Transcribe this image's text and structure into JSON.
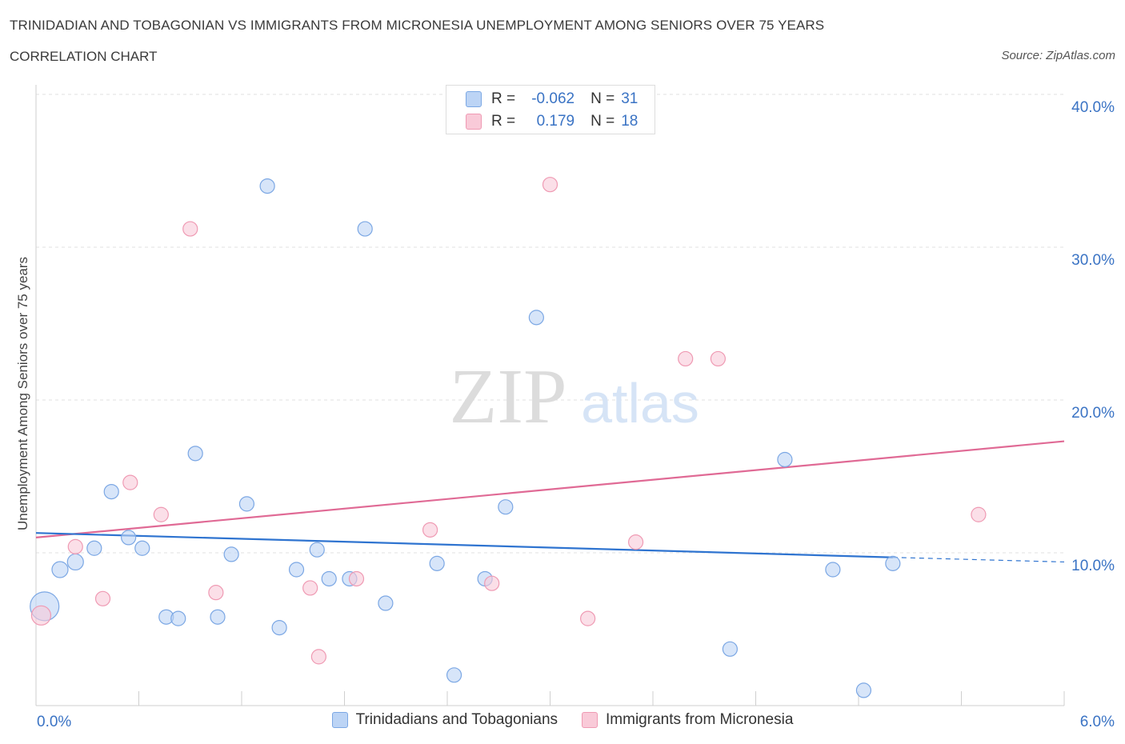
{
  "title": "TRINIDADIAN AND TOBAGONIAN VS IMMIGRANTS FROM MICRONESIA UNEMPLOYMENT AMONG SENIORS OVER 75 YEARS",
  "subtitle": "CORRELATION CHART",
  "source": "Source: ZipAtlas.com",
  "watermark": {
    "zip": "ZIP",
    "atlas": "atlas"
  },
  "stats": [
    {
      "r_label": "R =",
      "r_value": "-0.062",
      "n_label": "N =",
      "n_value": "31",
      "color": "#7ba7e4"
    },
    {
      "r_label": "R =",
      "r_value": "0.179",
      "n_label": "N =",
      "n_value": "18",
      "color": "#ef9ab3"
    }
  ],
  "colors": {
    "blue_fill": "#bcd4f5",
    "blue_stroke": "#7ba7e4",
    "blue_line": "#2f74d0",
    "pink_fill": "#f9cad8",
    "pink_stroke": "#ef9ab3",
    "pink_line": "#e06a95",
    "axis_text": "#3a73c4"
  },
  "chart_data": {
    "type": "scatter",
    "title": "TRINIDADIAN AND TOBAGONIAN VS IMMIGRANTS FROM MICRONESIA UNEMPLOYMENT AMONG SENIORS OVER 75 YEARS",
    "xlabel": "",
    "ylabel": "Unemployment Among Seniors over 75 years",
    "xlim": [
      0,
      6
    ],
    "ylim": [
      0,
      40
    ],
    "x_tick_labels": [
      "0.0%",
      "6.0%"
    ],
    "y_ticks": [
      10,
      20,
      30,
      40
    ],
    "y_tick_labels": [
      "10.0%",
      "20.0%",
      "30.0%",
      "40.0%"
    ],
    "grid": true,
    "legend": [
      "Trinidadians and Tobagonians",
      "Immigrants from Micronesia"
    ],
    "series": [
      {
        "name": "Trinidadians and Tobagonians",
        "points": [
          [
            0.05,
            6.5,
            18
          ],
          [
            0.14,
            8.9,
            10
          ],
          [
            0.23,
            9.4,
            10
          ],
          [
            0.34,
            10.3,
            9
          ],
          [
            0.44,
            14.0,
            9
          ],
          [
            0.54,
            11.0,
            9
          ],
          [
            0.62,
            10.3,
            9
          ],
          [
            0.76,
            5.8,
            9
          ],
          [
            0.83,
            5.7,
            9
          ],
          [
            0.93,
            16.5,
            9
          ],
          [
            1.06,
            5.8,
            9
          ],
          [
            1.14,
            9.9,
            9
          ],
          [
            1.23,
            13.2,
            9
          ],
          [
            1.35,
            34.0,
            9
          ],
          [
            1.42,
            5.1,
            9
          ],
          [
            1.52,
            8.9,
            9
          ],
          [
            1.64,
            10.2,
            9
          ],
          [
            1.71,
            8.3,
            9
          ],
          [
            1.83,
            8.3,
            9
          ],
          [
            1.92,
            31.2,
            9
          ],
          [
            2.04,
            6.7,
            9
          ],
          [
            2.34,
            9.3,
            9
          ],
          [
            2.44,
            2.0,
            9
          ],
          [
            2.62,
            8.3,
            9
          ],
          [
            2.74,
            13.0,
            9
          ],
          [
            2.92,
            25.4,
            9
          ],
          [
            4.05,
            3.7,
            9
          ],
          [
            4.37,
            16.1,
            9
          ],
          [
            4.65,
            8.9,
            9
          ],
          [
            4.83,
            1.0,
            9
          ],
          [
            5.0,
            9.3,
            9
          ]
        ],
        "trend": {
          "x": [
            0.0,
            5.0
          ],
          "y": [
            11.3,
            9.7
          ]
        },
        "trend_dashed": {
          "x": [
            5.0,
            6.0
          ],
          "y": [
            9.7,
            9.4
          ]
        }
      },
      {
        "name": "Immigrants from Micronesia",
        "points": [
          [
            0.03,
            5.9,
            12
          ],
          [
            0.23,
            10.4,
            9
          ],
          [
            0.39,
            7.0,
            9
          ],
          [
            0.55,
            14.6,
            9
          ],
          [
            0.73,
            12.5,
            9
          ],
          [
            0.9,
            31.2,
            9
          ],
          [
            1.05,
            7.4,
            9
          ],
          [
            1.6,
            7.7,
            9
          ],
          [
            1.65,
            3.2,
            9
          ],
          [
            1.87,
            8.3,
            9
          ],
          [
            2.3,
            11.5,
            9
          ],
          [
            2.66,
            8.0,
            9
          ],
          [
            3.0,
            34.1,
            9
          ],
          [
            3.22,
            5.7,
            9
          ],
          [
            3.5,
            10.7,
            9
          ],
          [
            3.79,
            22.7,
            9
          ],
          [
            3.98,
            22.7,
            9
          ],
          [
            5.5,
            12.5,
            9
          ]
        ],
        "trend": {
          "x": [
            0.0,
            6.0
          ],
          "y": [
            11.0,
            17.3
          ]
        }
      }
    ]
  }
}
